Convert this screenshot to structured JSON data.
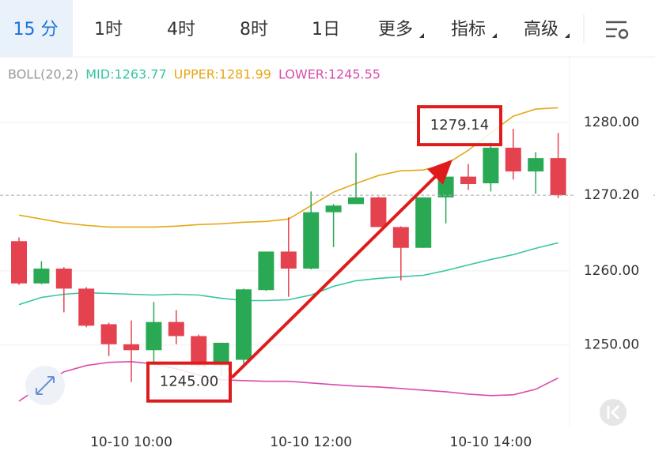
{
  "tabs": [
    "15 分",
    "1时",
    "4时",
    "8时",
    "1日",
    "更多",
    "指标",
    "高级"
  ],
  "chart_data": {
    "type": "candlestick",
    "indicator": "BOLL(20,2)",
    "categories": [
      null,
      null,
      null,
      null,
      null,
      "10-10 10:00",
      null,
      null,
      null,
      null,
      null,
      null,
      null,
      "10-10 12:00",
      null,
      null,
      null,
      null,
      null,
      null,
      null,
      "10-10 14:00",
      null,
      null,
      null
    ],
    "ohlc": {
      "open": [
        1264.0,
        1258.3,
        1260.3,
        1257.6,
        1252.8,
        1250.1,
        1249.3,
        1253.1,
        1251.2,
        1247.2,
        1248.0,
        1257.4,
        1262.6,
        1260.3,
        1267.9,
        1269.0,
        1269.9,
        1265.9,
        1263.1,
        1269.9,
        1272.7,
        1271.8,
        1276.6,
        1273.4,
        1275.2
      ],
      "high": [
        1264.5,
        1261.3,
        1260.5,
        1257.8,
        1253.0,
        1253.3,
        1255.8,
        1254.7,
        1251.4,
        1250.3,
        1257.6,
        1262.6,
        1267.2,
        1270.7,
        1269.0,
        1275.9,
        1270.0,
        1266.0,
        1269.9,
        1272.7,
        1274.4,
        1277.5,
        1279.14,
        1276.0,
        1278.6
      ],
      "low": [
        1258.1,
        1258.2,
        1254.4,
        1252.4,
        1248.5,
        1245.0,
        1247.5,
        1250.1,
        1247.0,
        1245.9,
        1247.5,
        1257.3,
        1256.5,
        1260.2,
        1263.2,
        1269.0,
        1265.9,
        1258.7,
        1263.1,
        1266.4,
        1270.9,
        1270.7,
        1272.3,
        1270.4,
        1269.8
      ],
      "close": [
        1258.3,
        1260.3,
        1257.6,
        1252.6,
        1250.1,
        1249.3,
        1253.1,
        1251.2,
        1247.2,
        1250.3,
        1257.5,
        1262.6,
        1260.3,
        1267.9,
        1268.8,
        1269.9,
        1265.9,
        1263.1,
        1269.9,
        1272.7,
        1271.7,
        1276.6,
        1273.4,
        1275.2,
        1270.2
      ]
    },
    "up_color": "#2aa955",
    "down_color": "#e5424f",
    "series": [
      {
        "name": "MID:1263.77",
        "color": "#36c4a2",
        "values": [
          1255.45,
          1256.41,
          1256.84,
          1257.05,
          1256.95,
          1256.84,
          1256.73,
          1256.84,
          1256.73,
          1256.3,
          1255.99,
          1255.99,
          1256.09,
          1256.73,
          1257.91,
          1258.66,
          1258.98,
          1259.19,
          1259.4,
          1260.04,
          1260.79,
          1261.53,
          1262.18,
          1263.03,
          1263.77
        ]
      },
      {
        "name": "UPPER:1281.99",
        "color": "#e6a817",
        "values": [
          1267.51,
          1266.98,
          1266.45,
          1266.13,
          1265.91,
          1265.91,
          1265.91,
          1266.02,
          1266.23,
          1266.34,
          1266.55,
          1266.66,
          1266.98,
          1268.79,
          1270.61,
          1271.78,
          1272.85,
          1273.49,
          1273.59,
          1274.34,
          1276.26,
          1278.61,
          1280.85,
          1281.81,
          1281.99
        ]
      },
      {
        "name": "LOWER:1245.55",
        "color": "#d84cad",
        "values": [
          1242.43,
          1244.45,
          1246.38,
          1247.23,
          1247.66,
          1247.76,
          1247.45,
          1246.8,
          1245.95,
          1245.31,
          1245.2,
          1245.1,
          1245.1,
          1244.88,
          1244.66,
          1244.45,
          1244.34,
          1244.13,
          1243.91,
          1243.7,
          1243.38,
          1243.17,
          1243.28,
          1244.03,
          1245.55
        ]
      }
    ],
    "ylim": [
      1239,
      1284.8
    ],
    "yticks": [
      {
        "value": 1250,
        "label": "1250.00"
      },
      {
        "value": 1260,
        "label": "1260.00"
      },
      {
        "value": 1280,
        "label": "1280.00"
      }
    ],
    "grid": true,
    "last_price": {
      "value": 1270.2,
      "label": "1270.20",
      "color": "#e5424f"
    },
    "annotations": [
      {
        "value": 1245,
        "label": "1245.00"
      },
      {
        "value": 1279.14,
        "label": "1279.14"
      }
    ],
    "annotation_color": "#e01b1b"
  }
}
